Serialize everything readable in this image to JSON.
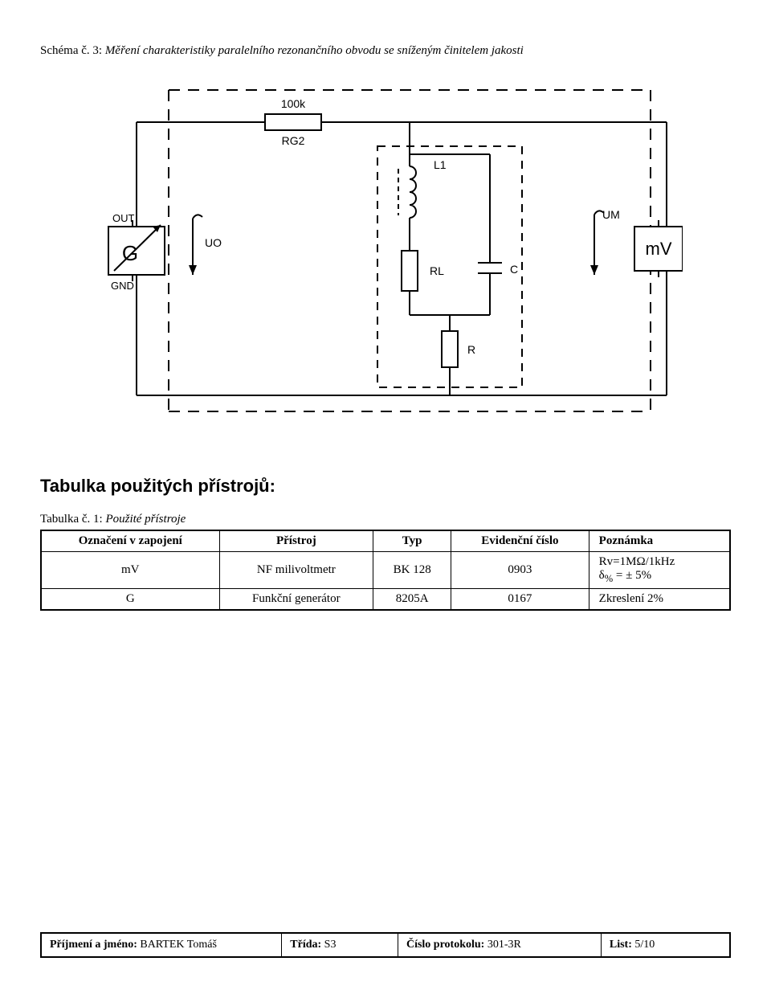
{
  "caption": {
    "lead": "Schéma č. 3: ",
    "body": "Měření charakteristiky paralelního rezonančního obvodu se sníženým činitelem jakosti"
  },
  "diagram": {
    "labels": {
      "r_top_value": "100k",
      "r_top_name": "RG2",
      "inductor": "L1",
      "rl": "RL",
      "c": "C",
      "r_bottom": "R",
      "out": "OUT",
      "gnd": "GND",
      "gen": "G",
      "uo": "UO",
      "um": "UM",
      "mv": "mV"
    },
    "colors": {
      "stroke": "#000000",
      "bg": "#ffffff"
    }
  },
  "instr_heading": "Tabulka použitých přístrojů:",
  "tbl_caption": {
    "lead": "Tabulka č. 1: ",
    "body": "Použité přístroje"
  },
  "table": {
    "headers": [
      "Označení v zapojení",
      "Přístroj",
      "Typ",
      "Evidenční číslo",
      "Poznámka"
    ],
    "rows": [
      {
        "mark": "mV",
        "instr": "NF milivoltmetr",
        "type": "BK 128",
        "ev": "0903",
        "note": "Rv=1MΩ/1kHz<br>δ<sub>%</sub> = ± 5%"
      },
      {
        "mark": "G",
        "instr": "Funkční generátor",
        "type": "8205A",
        "ev": "0167",
        "note": "Zkreslení 2%"
      }
    ]
  },
  "footer": {
    "name_label": "Příjmení a jméno: ",
    "name_value": "BARTEK Tomáš",
    "class_label": "Třída: ",
    "class_value": "S3",
    "proto_label": "Číslo protokolu: ",
    "proto_value": "301-3R",
    "page_label": "List: ",
    "page_value": "5/10"
  }
}
